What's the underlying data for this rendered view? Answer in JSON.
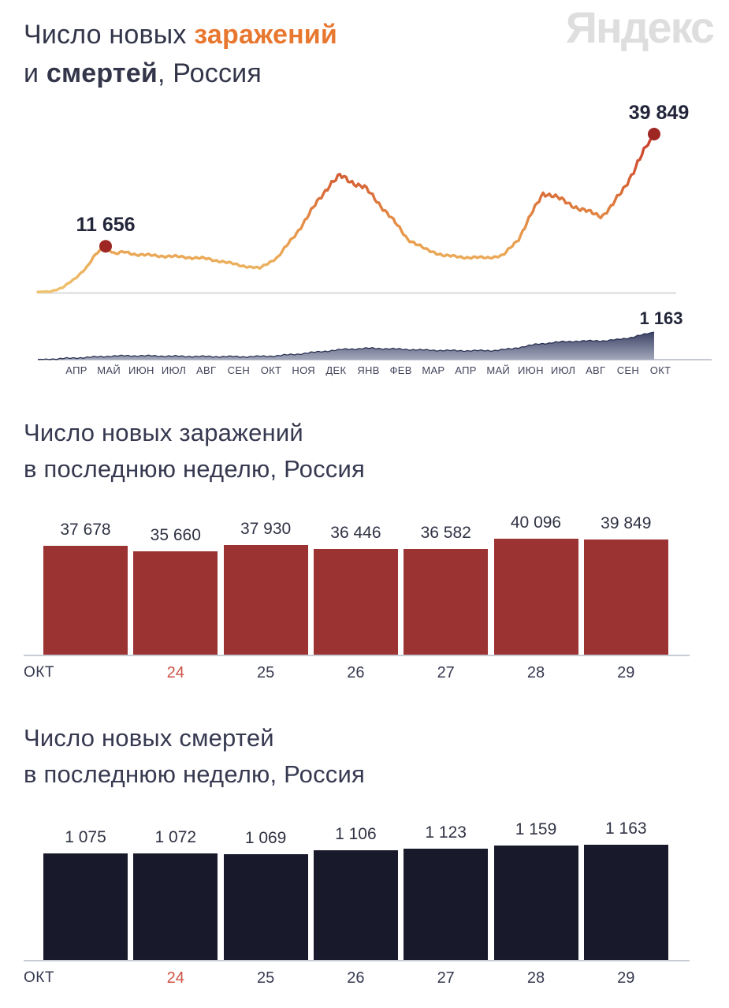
{
  "header": {
    "title_line1": {
      "prefix": "Число новых ",
      "accent": "заражений"
    },
    "title_line2": {
      "prefix": "и ",
      "bold": "смертей",
      "suffix": ", Россия"
    },
    "watermark": "Яндекс"
  },
  "colors": {
    "accent_orange": "#e8772f",
    "title_dark": "#33364a",
    "infection_bar": "#9c3333",
    "death_bar": "#181a2b",
    "dot_red": "#9e2723",
    "axis_line": "#c8ccd3",
    "highlight_day": "#cd5244",
    "line_gradient_low": "#eec36e",
    "line_gradient_high": "#c93a2b",
    "area_gradient_top": "#333b5e",
    "area_gradient_bottom": "#a3a8bb",
    "watermark_gray": "#dedede"
  },
  "chart_data": [
    {
      "type": "line",
      "title": "Число новых заражений и смертей, Россия",
      "x_labels": [
        "АПР",
        "МАЙ",
        "ИЮН",
        "ИЮЛ",
        "АВГ",
        "СЕН",
        "ОКТ",
        "НОЯ",
        "ДЕК",
        "ЯНВ",
        "ФЕВ",
        "МАР",
        "АПР",
        "МАЙ",
        "ИЮН",
        "ИЮЛ",
        "АВГ",
        "СЕН",
        "ОКТ"
      ],
      "x_range_note": "апрель 2020 — октябрь 2021, x задан долей 0..1",
      "grid": false,
      "legend": false,
      "annotations": [
        {
          "label": "11 656",
          "value": 11656,
          "series": "infections",
          "position": "first_peak"
        },
        {
          "label": "39 849",
          "value": 39849,
          "series": "infections",
          "position": "last_point"
        },
        {
          "label": "1 163",
          "value": 1163,
          "series": "deaths",
          "position": "last_point"
        }
      ],
      "series": [
        {
          "name": "новые заражения",
          "style": "line",
          "ylim": [
            0,
            39849
          ],
          "points": [
            [
              0,
              150
            ],
            [
              0.02,
              300
            ],
            [
              0.04,
              1200
            ],
            [
              0.06,
              3500
            ],
            [
              0.08,
              6500
            ],
            [
              0.095,
              9800
            ],
            [
              0.11,
              11656
            ],
            [
              0.125,
              9700
            ],
            [
              0.14,
              10200
            ],
            [
              0.16,
              9600
            ],
            [
              0.19,
              9300
            ],
            [
              0.23,
              9000
            ],
            [
              0.27,
              8600
            ],
            [
              0.3,
              7800
            ],
            [
              0.33,
              6800
            ],
            [
              0.36,
              6100
            ],
            [
              0.39,
              9000
            ],
            [
              0.42,
              15000
            ],
            [
              0.45,
              22000
            ],
            [
              0.475,
              27500
            ],
            [
              0.49,
              29300
            ],
            [
              0.51,
              27800
            ],
            [
              0.53,
              26500
            ],
            [
              0.55,
              23000
            ],
            [
              0.57,
              19500
            ],
            [
              0.6,
              13500
            ],
            [
              0.63,
              10800
            ],
            [
              0.66,
              9300
            ],
            [
              0.7,
              8800
            ],
            [
              0.73,
              8800
            ],
            [
              0.755,
              9300
            ],
            [
              0.78,
              13500
            ],
            [
              0.8,
              19500
            ],
            [
              0.82,
              25000
            ],
            [
              0.835,
              24500
            ],
            [
              0.86,
              22500
            ],
            [
              0.88,
              21000
            ],
            [
              0.9,
              20000
            ],
            [
              0.915,
              19200
            ],
            [
              0.93,
              21500
            ],
            [
              0.95,
              26000
            ],
            [
              0.97,
              31500
            ],
            [
              0.985,
              36000
            ],
            [
              1,
              39849
            ]
          ]
        },
        {
          "name": "новые смерти",
          "style": "area",
          "ylim": [
            0,
            1163
          ],
          "points": [
            [
              0,
              8
            ],
            [
              0.03,
              30
            ],
            [
              0.06,
              70
            ],
            [
              0.09,
              110
            ],
            [
              0.12,
              150
            ],
            [
              0.15,
              165
            ],
            [
              0.18,
              160
            ],
            [
              0.22,
              145
            ],
            [
              0.26,
              135
            ],
            [
              0.3,
              128
            ],
            [
              0.34,
              125
            ],
            [
              0.38,
              150
            ],
            [
              0.42,
              230
            ],
            [
              0.46,
              340
            ],
            [
              0.5,
              440
            ],
            [
              0.54,
              480
            ],
            [
              0.58,
              450
            ],
            [
              0.62,
              410
            ],
            [
              0.66,
              385
            ],
            [
              0.7,
              375
            ],
            [
              0.74,
              385
            ],
            [
              0.77,
              460
            ],
            [
              0.79,
              560
            ],
            [
              0.81,
              650
            ],
            [
              0.84,
              730
            ],
            [
              0.87,
              775
            ],
            [
              0.9,
              790
            ],
            [
              0.92,
              800
            ],
            [
              0.94,
              840
            ],
            [
              0.96,
              920
            ],
            [
              0.98,
              1040
            ],
            [
              1,
              1163
            ]
          ]
        }
      ]
    },
    {
      "type": "bar",
      "title": "Число новых заражений",
      "subtitle": "в последнюю неделю, Россия",
      "categories": [
        "ОКТ",
        "24",
        "25",
        "26",
        "27",
        "28",
        "29"
      ],
      "values": [
        37678,
        35660,
        37930,
        36446,
        36582,
        40096,
        39849
      ],
      "value_labels": [
        "37 678",
        "35 660",
        "37 930",
        "36 446",
        "36 582",
        "40 096",
        "39 849"
      ],
      "ylim": [
        0,
        40096
      ],
      "bar_color": "#9c3333",
      "highlight_category": "24",
      "grid": false,
      "legend": false
    },
    {
      "type": "bar",
      "title": "Число новых смертей",
      "subtitle": "в последнюю неделю, Россия",
      "categories": [
        "ОКТ",
        "24",
        "25",
        "26",
        "27",
        "28",
        "29"
      ],
      "values": [
        1075,
        1072,
        1069,
        1106,
        1123,
        1159,
        1163
      ],
      "value_labels": [
        "1 075",
        "1 072",
        "1 069",
        "1 106",
        "1 123",
        "1 159",
        "1 163"
      ],
      "ylim": [
        0,
        1163
      ],
      "bar_color": "#181a2b",
      "highlight_category": "24",
      "grid": false,
      "legend": false
    }
  ]
}
